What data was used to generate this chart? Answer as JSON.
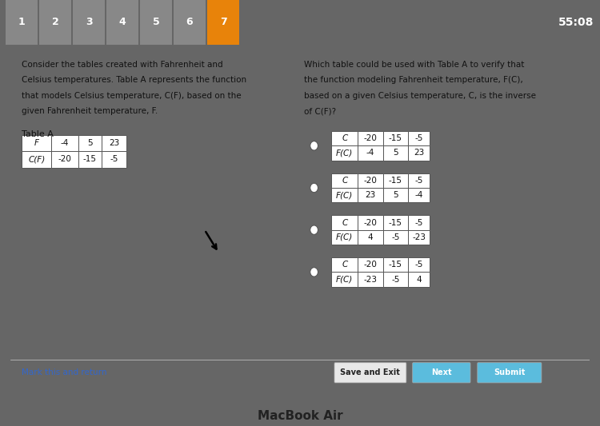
{
  "timer": "55:08",
  "outer_bg": "#666666",
  "screen_bg": "#e8e8e8",
  "content_bg": "#f5f5f5",
  "nav_bg": "#555555",
  "left_text": [
    "Consider the tables created with Fahrenheit and",
    "Celsius temperatures. Table A represents the function",
    "that models Celsius temperature, C(F), based on the",
    "given Fahrenheit temperature, F."
  ],
  "right_text": [
    "Which table could be used with Table A to verify that",
    "the function modeling Fahrenheit temperature, F(C),",
    "based on a given Celsius temperature, C, is the inverse",
    "of C(F)?"
  ],
  "table_a_label": "Table A",
  "table_a_rows": [
    [
      "F",
      "-4",
      "5",
      "23"
    ],
    [
      "C(F)",
      "-20",
      "-15",
      "-5"
    ]
  ],
  "option_tables": [
    [
      [
        "C",
        "-20",
        "-15",
        "-5"
      ],
      [
        "F(C)",
        "-4",
        "5",
        "23"
      ]
    ],
    [
      [
        "C",
        "-20",
        "-15",
        "-5"
      ],
      [
        "F(C)",
        "23",
        "5",
        "-4"
      ]
    ],
    [
      [
        "C",
        "-20",
        "-15",
        "-5"
      ],
      [
        "F(C)",
        "4",
        "-5",
        "-23"
      ]
    ],
    [
      [
        "C",
        "-20",
        "-15",
        "-5"
      ],
      [
        "F(C)",
        "-23",
        "-5",
        "4"
      ]
    ]
  ],
  "bottom_buttons": [
    "Save and Exit",
    "Next",
    "Submit"
  ],
  "btn_colors": [
    "#e8e8e8",
    "#5bbcdd",
    "#5bbcdd"
  ],
  "btn_text_colors": [
    "#222222",
    "#ffffff",
    "#ffffff"
  ],
  "bottom_link": "Mark this and return",
  "macbook_text": "MacBook Air",
  "top_tab_color": "#e8830a",
  "tab_bg": "#888888",
  "tab_labels": [
    "1",
    "2",
    "3",
    "4",
    "5",
    "6",
    "7"
  ]
}
